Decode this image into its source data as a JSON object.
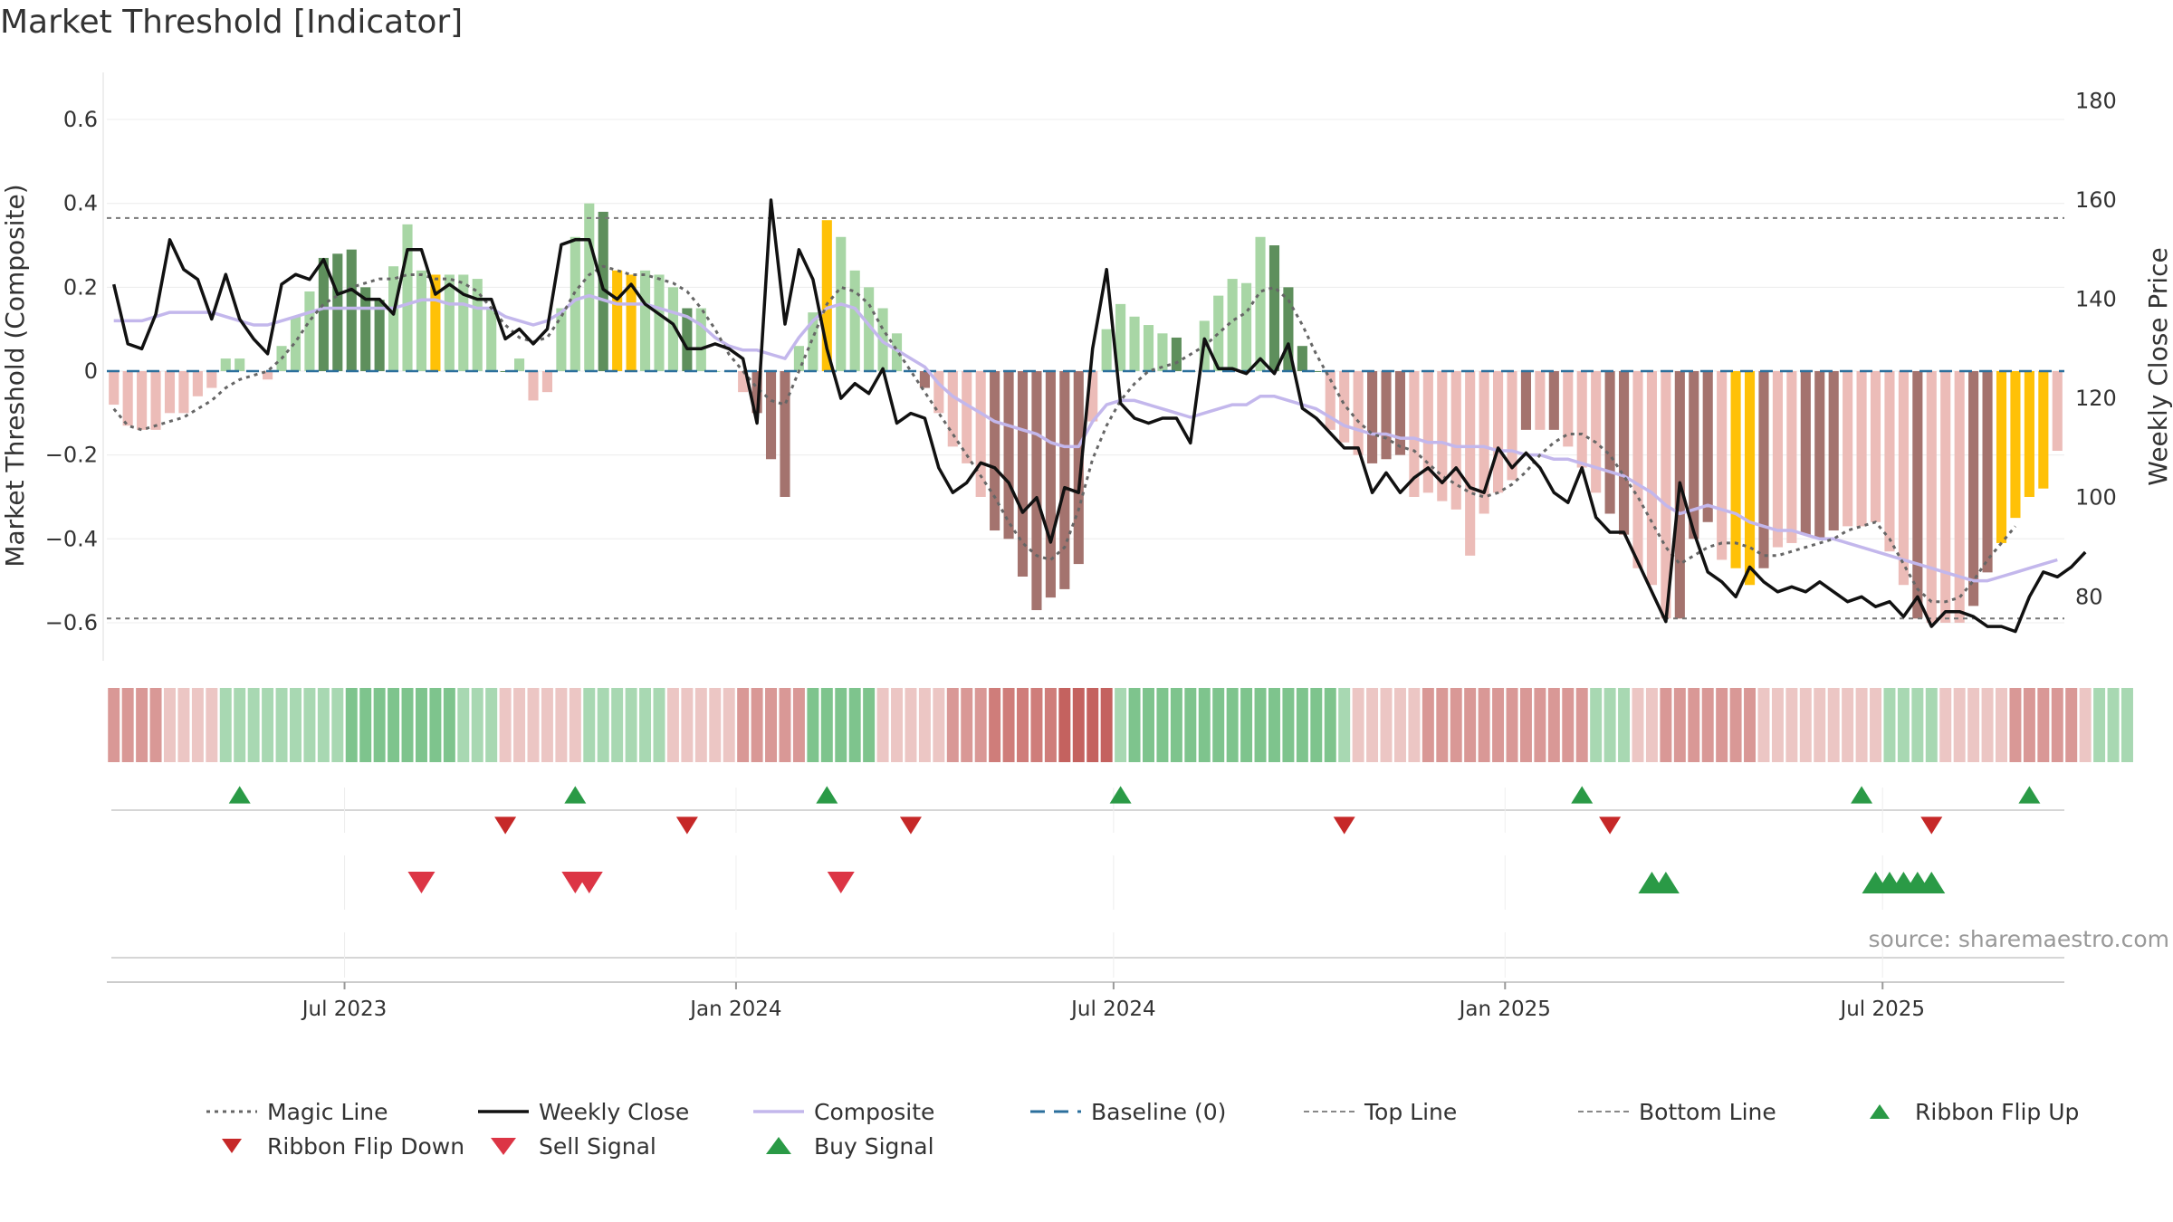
{
  "title": "Market Threshold [Indicator]",
  "source": "source: sharemaestro.com",
  "colors": {
    "bull_strong": "#5e8f5c",
    "bull_soft": "#a8d6a5",
    "bear_strong": "#a4736e",
    "bear_soft": "#ecbcb8",
    "extreme": "#ffc107",
    "composite": "#c3b7ec",
    "close": "#111111",
    "magic": "#666666",
    "baseline": "#2b6f9c",
    "buy": "#2a9a46",
    "sell": "#dc3545",
    "ribbon_flip_down": "#c62828"
  },
  "legend": [
    {
      "label": "Magic Line",
      "symbol": "dotted"
    },
    {
      "label": "Weekly Close",
      "symbol": "solid"
    },
    {
      "label": "Composite",
      "symbol": "composite"
    },
    {
      "label": "Baseline (0)",
      "symbol": "dashed"
    },
    {
      "label": "Top Line",
      "symbol": "dashed-grey"
    },
    {
      "label": "Bottom Line",
      "symbol": "dashed-grey"
    },
    {
      "label": "Ribbon Flip Up",
      "symbol": "tri-up"
    },
    {
      "label": "Ribbon Flip Down",
      "symbol": "tri-down-dark"
    },
    {
      "label": "Sell Signal",
      "symbol": "tri-down"
    },
    {
      "label": "Buy Signal",
      "symbol": "tri-up-big"
    }
  ],
  "chart_data": {
    "type": "bar",
    "x_axis": {
      "ticks": [
        "Jul 2023",
        "Jan 2024",
        "Jul 2024",
        "Jan 2025",
        "Jul 2025"
      ],
      "tick_index": [
        17,
        45,
        72,
        100,
        127
      ]
    },
    "y_left": {
      "label": "Market Threshold (Composite)",
      "ylim": [
        -0.68,
        0.68
      ],
      "ticks": [
        -0.6,
        -0.4,
        -0.2,
        0,
        0.2,
        0.4,
        0.6
      ],
      "tick_labels": [
        "−0.6",
        "−0.4",
        "−0.2",
        "0",
        "0.2",
        "0.4",
        "0.6"
      ]
    },
    "y_right": {
      "label": "Weekly Close Price",
      "ylim": [
        68,
        183
      ],
      "ticks": [
        80,
        100,
        120,
        140,
        160,
        180
      ]
    },
    "top_line": 0.365,
    "bottom_line": -0.59,
    "baseline": 0,
    "grid": true,
    "legend_position": "bottom",
    "bars": [
      -0.08,
      -0.13,
      -0.14,
      -0.14,
      -0.1,
      -0.1,
      -0.06,
      -0.04,
      0.03,
      0.03,
      0.0,
      -0.02,
      0.06,
      0.13,
      0.19,
      0.27,
      0.28,
      0.29,
      0.2,
      0.17,
      0.25,
      0.35,
      0.24,
      0.23,
      0.23,
      0.23,
      0.22,
      0.15,
      0.0,
      0.03,
      -0.07,
      -0.05,
      0.15,
      0.32,
      0.4,
      0.38,
      0.24,
      0.23,
      0.24,
      0.23,
      0.2,
      0.15,
      0.15,
      0.0,
      0.0,
      -0.05,
      -0.1,
      -0.21,
      -0.3,
      0.06,
      0.14,
      0.36,
      0.32,
      0.24,
      0.2,
      0.15,
      0.09,
      0.0,
      -0.04,
      -0.1,
      -0.18,
      -0.22,
      -0.3,
      -0.38,
      -0.4,
      -0.49,
      -0.57,
      -0.54,
      -0.52,
      -0.46,
      -0.12,
      0.1,
      0.16,
      0.13,
      0.11,
      0.09,
      0.08,
      0.0,
      0.12,
      0.18,
      0.22,
      0.21,
      0.32,
      0.3,
      0.2,
      0.06,
      0.0,
      -0.14,
      -0.17,
      -0.2,
      -0.22,
      -0.21,
      -0.2,
      -0.3,
      -0.29,
      -0.31,
      -0.33,
      -0.44,
      -0.34,
      -0.29,
      -0.26,
      -0.14,
      -0.14,
      -0.14,
      -0.18,
      -0.23,
      -0.29,
      -0.34,
      -0.39,
      -0.47,
      -0.51,
      -0.59,
      -0.59,
      -0.4,
      -0.36,
      -0.45,
      -0.47,
      -0.51,
      -0.47,
      -0.42,
      -0.41,
      -0.39,
      -0.4,
      -0.38,
      -0.37,
      -0.37,
      -0.36,
      -0.43,
      -0.51,
      -0.59,
      -0.6,
      -0.6,
      -0.6,
      -0.56,
      -0.48,
      -0.41,
      -0.35,
      -0.3,
      -0.28,
      -0.19
    ],
    "bar_class": "bbbbsssssssssssBBBBBsssEssssBsbbbssBEEsssBsssbBBBssEssssbBBbbssBBBBBBBsssssbBBsssssBBBBsssBBBsssssbssBbBsssBBbbbBBBbEEBssBBBsssssBssbBBEEEEssssss",
    "close": [
      143,
      131,
      130,
      137,
      152,
      146,
      144,
      136,
      145,
      136,
      132,
      129,
      143,
      145,
      144,
      148,
      141,
      142,
      140,
      140,
      137,
      150,
      150,
      141,
      143,
      141,
      140,
      140,
      132,
      134,
      131,
      134,
      151,
      152,
      152,
      142,
      140,
      143,
      139,
      137,
      135,
      130,
      130,
      131,
      130,
      128,
      115,
      160,
      135,
      150,
      144,
      130,
      120,
      123,
      121,
      126,
      115,
      117,
      116,
      106,
      101,
      103,
      107,
      106,
      103,
      97,
      100,
      91,
      102,
      101,
      130,
      146,
      119,
      116,
      115,
      116,
      116,
      111,
      132,
      126,
      126,
      125,
      128,
      125,
      131,
      118,
      116,
      113,
      110,
      110,
      101,
      105,
      101,
      104,
      106,
      103,
      106,
      102,
      101,
      110,
      106,
      109,
      106,
      101,
      99,
      106,
      96,
      93,
      93,
      87,
      81,
      75,
      103,
      93,
      85,
      83,
      80,
      86,
      83,
      81,
      82,
      81,
      83,
      81,
      79,
      80,
      78,
      79,
      76,
      80,
      74,
      77,
      77,
      76,
      74,
      74,
      73,
      80,
      85,
      84,
      86,
      89
    ],
    "composite": [
      0.12,
      0.12,
      0.12,
      0.13,
      0.14,
      0.14,
      0.14,
      0.14,
      0.13,
      0.12,
      0.11,
      0.11,
      0.12,
      0.13,
      0.14,
      0.15,
      0.15,
      0.15,
      0.15,
      0.15,
      0.15,
      0.16,
      0.17,
      0.17,
      0.16,
      0.16,
      0.15,
      0.15,
      0.13,
      0.12,
      0.11,
      0.12,
      0.14,
      0.17,
      0.18,
      0.17,
      0.16,
      0.16,
      0.16,
      0.15,
      0.14,
      0.13,
      0.11,
      0.08,
      0.06,
      0.05,
      0.05,
      0.04,
      0.03,
      0.08,
      0.12,
      0.15,
      0.16,
      0.15,
      0.11,
      0.07,
      0.05,
      0.03,
      0.01,
      -0.03,
      -0.06,
      -0.08,
      -0.1,
      -0.12,
      -0.13,
      -0.14,
      -0.15,
      -0.17,
      -0.18,
      -0.18,
      -0.12,
      -0.08,
      -0.07,
      -0.07,
      -0.08,
      -0.09,
      -0.1,
      -0.11,
      -0.1,
      -0.09,
      -0.08,
      -0.08,
      -0.06,
      -0.06,
      -0.07,
      -0.08,
      -0.09,
      -0.11,
      -0.13,
      -0.14,
      -0.15,
      -0.15,
      -0.16,
      -0.16,
      -0.17,
      -0.17,
      -0.18,
      -0.18,
      -0.18,
      -0.19,
      -0.19,
      -0.2,
      -0.2,
      -0.21,
      -0.21,
      -0.22,
      -0.23,
      -0.24,
      -0.25,
      -0.27,
      -0.29,
      -0.32,
      -0.34,
      -0.33,
      -0.32,
      -0.33,
      -0.34,
      -0.36,
      -0.37,
      -0.38,
      -0.38,
      -0.39,
      -0.4,
      -0.4,
      -0.41,
      -0.42,
      -0.43,
      -0.44,
      -0.45,
      -0.46,
      -0.47,
      -0.48,
      -0.49,
      -0.5,
      -0.5,
      -0.49,
      -0.48,
      -0.47,
      -0.46,
      -0.45
    ],
    "magic": [
      -0.09,
      -0.13,
      -0.14,
      -0.13,
      -0.12,
      -0.11,
      -0.09,
      -0.07,
      -0.04,
      -0.02,
      -0.01,
      0.0,
      0.03,
      0.07,
      0.12,
      0.16,
      0.18,
      0.2,
      0.21,
      0.22,
      0.22,
      0.23,
      0.23,
      0.22,
      0.22,
      0.21,
      0.19,
      0.15,
      0.11,
      0.08,
      0.07,
      0.08,
      0.13,
      0.19,
      0.23,
      0.25,
      0.24,
      0.23,
      0.23,
      0.22,
      0.21,
      0.19,
      0.15,
      0.1,
      0.04,
      0.0,
      -0.04,
      -0.07,
      -0.08,
      0.0,
      0.08,
      0.16,
      0.2,
      0.19,
      0.16,
      0.1,
      0.05,
      0.0,
      -0.05,
      -0.1,
      -0.15,
      -0.2,
      -0.25,
      -0.3,
      -0.36,
      -0.41,
      -0.44,
      -0.45,
      -0.42,
      -0.33,
      -0.21,
      -0.13,
      -0.07,
      -0.03,
      0.0,
      0.01,
      0.02,
      0.04,
      0.06,
      0.09,
      0.12,
      0.14,
      0.19,
      0.2,
      0.17,
      0.11,
      0.04,
      -0.02,
      -0.08,
      -0.12,
      -0.15,
      -0.16,
      -0.18,
      -0.19,
      -0.22,
      -0.25,
      -0.27,
      -0.29,
      -0.3,
      -0.29,
      -0.27,
      -0.24,
      -0.2,
      -0.17,
      -0.15,
      -0.15,
      -0.17,
      -0.2,
      -0.25,
      -0.3,
      -0.36,
      -0.42,
      -0.46,
      -0.44,
      -0.42,
      -0.41,
      -0.41,
      -0.42,
      -0.44,
      -0.44,
      -0.43,
      -0.42,
      -0.41,
      -0.4,
      -0.38,
      -0.37,
      -0.36,
      -0.4,
      -0.46,
      -0.52,
      -0.55,
      -0.55,
      -0.54,
      -0.5,
      -0.45,
      -0.41,
      -0.37
    ],
    "ribbon": [
      -2,
      -2,
      -2,
      -2,
      -1,
      -1,
      -1,
      -1,
      1,
      1,
      1,
      1,
      1,
      1,
      1,
      1,
      1,
      2,
      2,
      2,
      2,
      2,
      2,
      2,
      2,
      1,
      1,
      1,
      -1,
      -1,
      -1,
      -1,
      -1,
      -1,
      1,
      1,
      1,
      1,
      1,
      1,
      -1,
      -1,
      -1,
      -1,
      -1,
      -2,
      -2,
      -2,
      -2,
      -2,
      2,
      2,
      2,
      2,
      2,
      -1,
      -1,
      -1,
      -1,
      -1,
      -2,
      -2,
      -2,
      -3,
      -3,
      -3,
      -3,
      -3,
      -4,
      -4,
      -4,
      -4,
      1,
      2,
      2,
      2,
      2,
      2,
      2,
      2,
      2,
      2,
      2,
      2,
      2,
      2,
      2,
      2,
      1,
      -1,
      -1,
      -1,
      -1,
      -1,
      -2,
      -2,
      -2,
      -2,
      -2,
      -2,
      -2,
      -2,
      -2,
      -2,
      -2,
      -2,
      1,
      1,
      1,
      -1,
      -1,
      -2,
      -2,
      -2,
      -2,
      -2,
      -2,
      -2,
      -1,
      -1,
      -1,
      -1,
      -1,
      -1,
      -1,
      -1,
      -1,
      1,
      1,
      1,
      1,
      -1,
      -1,
      -1,
      -1,
      -1,
      -2,
      -2,
      -2,
      -2,
      -2,
      -1,
      1,
      1,
      1
    ],
    "buy_signals": [
      9,
      33,
      51,
      72,
      105,
      125,
      137
    ],
    "sell_signals": [
      28,
      41,
      57,
      88,
      107,
      130
    ],
    "ribbon_flip_up": [
      110,
      111,
      126,
      127,
      128,
      129,
      130
    ],
    "ribbon_flip_down": [
      22,
      33,
      34,
      52
    ]
  }
}
